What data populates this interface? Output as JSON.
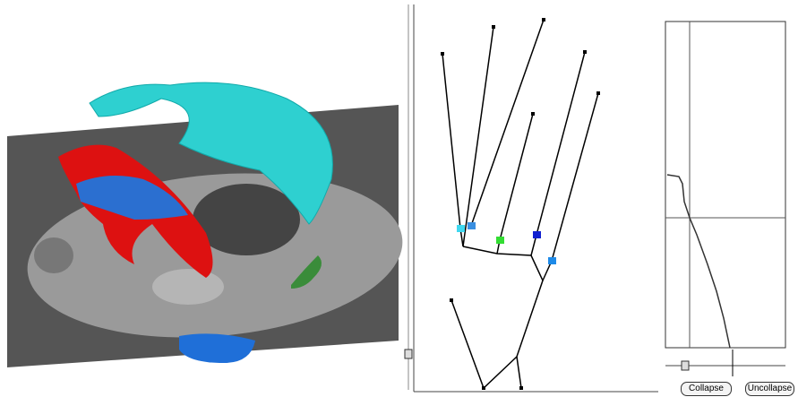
{
  "buttons": {
    "collapse": "Collapse",
    "uncollapse": "Uncollapse"
  }
}
